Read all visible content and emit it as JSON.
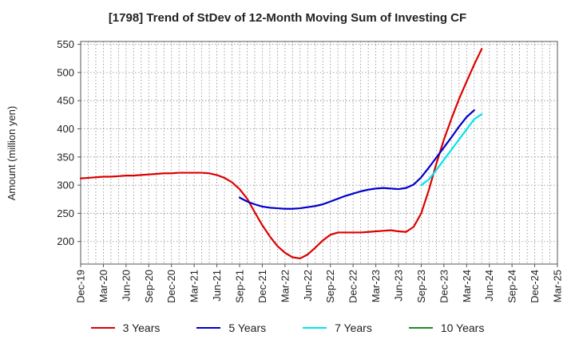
{
  "chart_data": {
    "type": "line",
    "title": "[1798]  Trend of StDev of 12-Month Moving Sum of Investing CF",
    "xlabel": "",
    "ylabel": "Amount (million yen)",
    "ylim": [
      160,
      555
    ],
    "yticks": [
      200,
      250,
      300,
      350,
      400,
      450,
      500,
      550
    ],
    "x_tick_labels": [
      "Dec-19",
      "Mar-20",
      "Jun-20",
      "Sep-20",
      "Dec-20",
      "Mar-21",
      "Jun-21",
      "Sep-21",
      "Dec-21",
      "Mar-22",
      "Jun-22",
      "Sep-22",
      "Dec-22",
      "Mar-23",
      "Jun-23",
      "Sep-23",
      "Dec-23",
      "Mar-24",
      "Jun-24",
      "Sep-24",
      "Dec-24",
      "Mar-25"
    ],
    "grid": true,
    "legend_position": "bottom",
    "series": [
      {
        "name": "3 Years",
        "color": "#dd0000",
        "start_index": 0,
        "values": [
          312,
          313,
          314,
          315,
          315,
          316,
          317,
          317,
          318,
          319,
          320,
          321,
          321,
          322,
          322,
          322,
          322,
          321,
          318,
          313,
          305,
          293,
          276,
          252,
          229,
          209,
          192,
          180,
          172,
          170,
          177,
          189,
          202,
          212,
          216,
          216,
          216,
          216,
          217,
          218,
          219,
          220,
          218,
          217,
          226,
          250,
          291,
          338,
          381,
          418,
          453,
          484,
          514,
          542
        ]
      },
      {
        "name": "5 Years",
        "color": "#0000cc",
        "start_index": 21,
        "values": [
          278,
          271,
          266,
          262,
          260,
          259,
          258,
          258,
          259,
          261,
          263,
          266,
          271,
          276,
          281,
          285,
          289,
          292,
          294,
          295,
          294,
          293,
          295,
          301,
          314,
          331,
          349,
          367,
          385,
          404,
          421,
          433
        ]
      },
      {
        "name": "7 Years",
        "color": "#00e5ee",
        "start_index": 45,
        "values": [
          300,
          310,
          327,
          345,
          363,
          381,
          399,
          417,
          426
        ]
      },
      {
        "name": "10 Years",
        "color": "#228b22",
        "start_index": 0,
        "values": []
      }
    ]
  }
}
